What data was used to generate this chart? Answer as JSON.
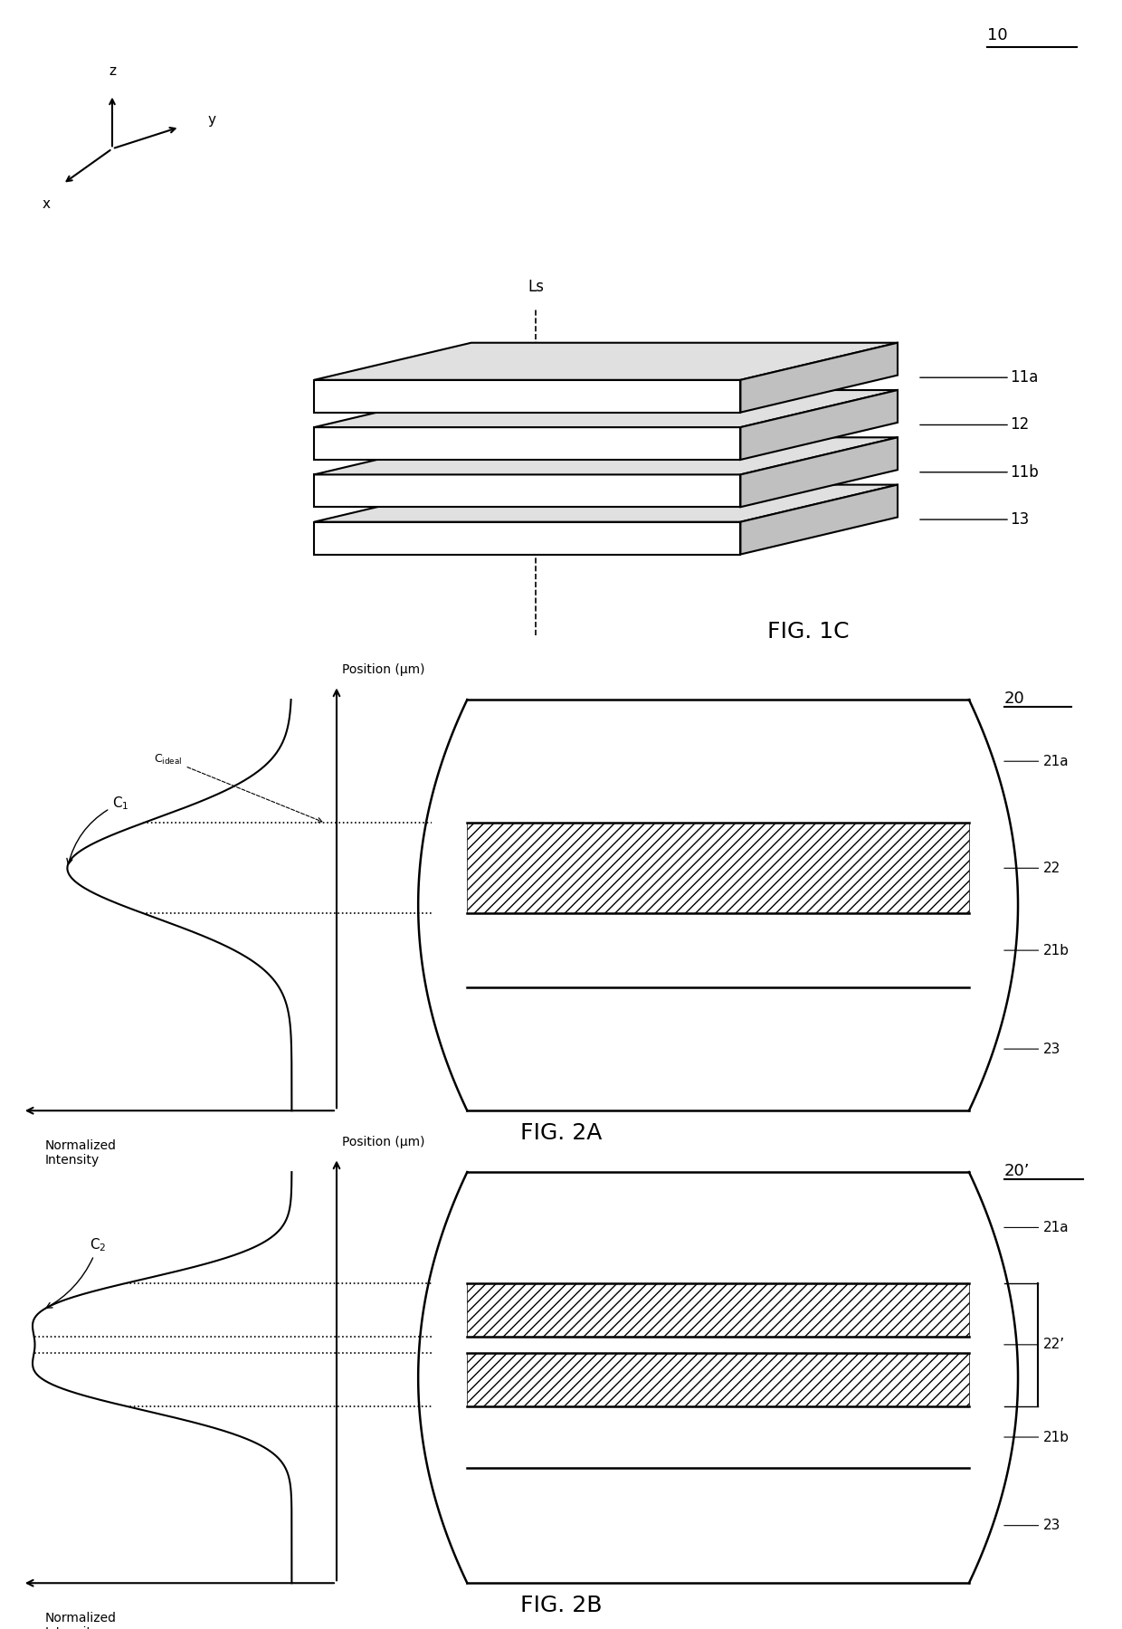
{
  "bg_color": "#ffffff",
  "line_color": "#000000",
  "fig1c": {
    "ref_label": "10",
    "fig_label": "FIG. 1C",
    "layers": [
      "11a",
      "12",
      "11b",
      "13"
    ],
    "ls_label": "Ls"
  },
  "fig2a": {
    "ref_label": "20",
    "fig_label": "FIG. 2A",
    "layers": [
      "21a",
      "22",
      "21b",
      "23"
    ],
    "peak_label": "C₁",
    "ideal_label": "C_ideal",
    "y_axis_label": "Position (μm)",
    "x_axis_label": "Normalized\nIntensity"
  },
  "fig2b": {
    "ref_label": "20’",
    "fig_label": "FIG. 2B",
    "layers": [
      "21a",
      "22’",
      "21b",
      "23"
    ],
    "peak_label": "C₂",
    "y_axis_label": "Position (μm)",
    "x_axis_label": "Normalized\nIntensity"
  }
}
